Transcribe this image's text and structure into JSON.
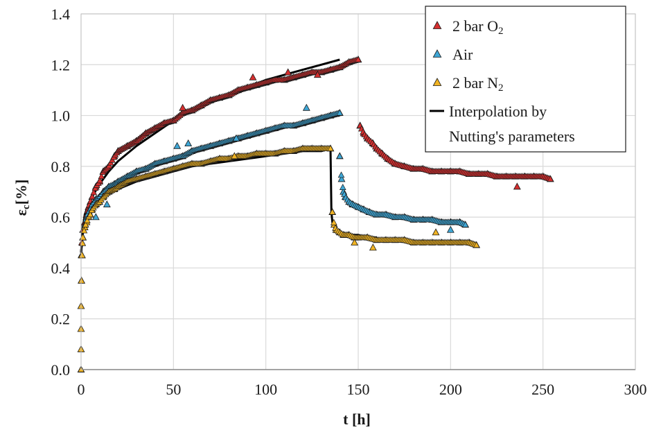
{
  "chart_data": {
    "type": "scatter",
    "xlabel": "t [h]",
    "ylabel": "ε",
    "ylabel_sub": "c",
    "ylabel_unit": "[%]",
    "xlim": [
      0,
      300
    ],
    "ylim": [
      0,
      1.4
    ],
    "xticks": [
      "0",
      "50",
      "100",
      "150",
      "200",
      "250",
      "300"
    ],
    "yticks": [
      "0.0",
      "0.2",
      "0.4",
      "0.6",
      "0.8",
      "1.0",
      "1.2",
      "1.4"
    ],
    "grid": true,
    "legend_position": "top-right",
    "legend": {
      "o2": {
        "main": "2 bar O",
        "sub": "2"
      },
      "air": {
        "main": "Air"
      },
      "n2": {
        "main": "2 bar N",
        "sub": "2"
      },
      "fit": {
        "line1": "Interpolation by",
        "line2": "Nutting's parameters"
      }
    },
    "colors": {
      "o2": "#d62f2f",
      "air": "#3fa7d6",
      "n2": "#f0b323",
      "fit": "#000000",
      "marker_edge": "#1a1a1a"
    },
    "series": [
      {
        "key": "o2",
        "segments": [
          {
            "phase": "loading",
            "x": [
              0.2,
              0.5,
              1,
              2,
              3,
              4,
              5,
              6,
              8,
              10,
              12,
              15,
              18,
              20,
              25,
              30,
              35,
              40,
              45,
              50,
              55,
              60,
              65,
              70,
              75,
              80,
              85,
              90,
              95,
              100,
              105,
              110,
              115,
              120,
              125,
              130,
              135,
              140,
              145,
              150
            ],
            "y": [
              0.45,
              0.5,
              0.55,
              0.58,
              0.61,
              0.64,
              0.66,
              0.68,
              0.72,
              0.74,
              0.78,
              0.8,
              0.84,
              0.86,
              0.88,
              0.9,
              0.93,
              0.95,
              0.97,
              0.98,
              1.01,
              1.02,
              1.04,
              1.06,
              1.07,
              1.08,
              1.1,
              1.11,
              1.12,
              1.13,
              1.14,
              1.14,
              1.15,
              1.16,
              1.17,
              1.17,
              1.18,
              1.19,
              1.21,
              1.22
            ]
          },
          {
            "phase": "recovery",
            "x": [
              151,
              153,
              155,
              158,
              160,
              163,
              166,
              170,
              175,
              180,
              185,
              190,
              195,
              200,
              205,
              210,
              215,
              220,
              225,
              230,
              235,
              240,
              245,
              250,
              254
            ],
            "y": [
              0.96,
              0.93,
              0.91,
              0.89,
              0.87,
              0.85,
              0.83,
              0.81,
              0.8,
              0.79,
              0.79,
              0.78,
              0.78,
              0.78,
              0.78,
              0.77,
              0.77,
              0.77,
              0.76,
              0.76,
              0.76,
              0.76,
              0.76,
              0.76,
              0.75
            ]
          }
        ],
        "outliers": {
          "x": [
            55,
            93,
            112,
            128,
            236
          ],
          "y": [
            1.03,
            1.15,
            1.17,
            1.16,
            0.72
          ]
        }
      },
      {
        "key": "air",
        "segments": [
          {
            "phase": "loading",
            "x": [
              0.2,
              0.5,
              1,
              2,
              3,
              4,
              5,
              6,
              8,
              10,
              12,
              15,
              18,
              20,
              25,
              30,
              35,
              40,
              45,
              50,
              55,
              60,
              65,
              70,
              75,
              80,
              85,
              90,
              95,
              100,
              105,
              110,
              115,
              120,
              125,
              130,
              135,
              140
            ],
            "y": [
              0.35,
              0.45,
              0.52,
              0.57,
              0.6,
              0.62,
              0.63,
              0.65,
              0.67,
              0.68,
              0.7,
              0.72,
              0.73,
              0.74,
              0.76,
              0.78,
              0.79,
              0.81,
              0.82,
              0.83,
              0.84,
              0.86,
              0.87,
              0.88,
              0.89,
              0.9,
              0.91,
              0.92,
              0.93,
              0.94,
              0.95,
              0.96,
              0.96,
              0.97,
              0.98,
              0.99,
              1.0,
              1.01
            ]
          },
          {
            "phase": "recovery",
            "x": [
              140,
              141,
              142,
              143,
              145,
              147,
              150,
              153,
              156,
              160,
              165,
              170,
              175,
              180,
              185,
              190,
              195,
              200,
              205,
              208
            ],
            "y": [
              0.84,
              0.75,
              0.7,
              0.68,
              0.66,
              0.65,
              0.64,
              0.63,
              0.62,
              0.61,
              0.61,
              0.6,
              0.6,
              0.59,
              0.59,
              0.59,
              0.58,
              0.58,
              0.58,
              0.57
            ]
          }
        ],
        "outliers": {
          "x": [
            8,
            14,
            52,
            58,
            84,
            122,
            200
          ],
          "y": [
            0.6,
            0.65,
            0.88,
            0.89,
            0.91,
            1.03,
            0.55
          ]
        }
      },
      {
        "key": "n2",
        "segments": [
          {
            "phase": "loading",
            "x": [
              0,
              0,
              0,
              0,
              0.2,
              0.5,
              1,
              2,
              3,
              4,
              5,
              6,
              8,
              10,
              12,
              15,
              18,
              20,
              25,
              30,
              35,
              40,
              45,
              50,
              55,
              60,
              65,
              70,
              75,
              80,
              85,
              90,
              95,
              100,
              105,
              110,
              115,
              120,
              125,
              130,
              135
            ],
            "y": [
              0.0,
              0.08,
              0.16,
              0.25,
              0.35,
              0.45,
              0.52,
              0.56,
              0.58,
              0.6,
              0.61,
              0.63,
              0.65,
              0.66,
              0.68,
              0.7,
              0.71,
              0.72,
              0.74,
              0.75,
              0.76,
              0.77,
              0.78,
              0.79,
              0.8,
              0.81,
              0.81,
              0.82,
              0.83,
              0.83,
              0.84,
              0.84,
              0.85,
              0.85,
              0.85,
              0.86,
              0.86,
              0.87,
              0.87,
              0.87,
              0.87
            ]
          },
          {
            "phase": "recovery",
            "x": [
              136,
              137,
              138,
              140,
              142,
              145,
              148,
              150,
              155,
              160,
              165,
              170,
              175,
              180,
              185,
              190,
              195,
              200,
              205,
              210,
              214
            ],
            "y": [
              0.62,
              0.57,
              0.55,
              0.54,
              0.53,
              0.53,
              0.52,
              0.52,
              0.52,
              0.51,
              0.51,
              0.51,
              0.51,
              0.5,
              0.5,
              0.5,
              0.5,
              0.5,
              0.5,
              0.5,
              0.49
            ]
          }
        ],
        "outliers": {
          "x": [
            83,
            148,
            158,
            192
          ],
          "y": [
            0.84,
            0.5,
            0.48,
            0.54
          ]
        }
      }
    ],
    "fit_lines": [
      {
        "x": [
          0,
          1,
          2,
          4,
          6,
          10,
          15,
          20,
          30,
          40,
          50,
          60,
          70,
          80,
          90,
          100,
          110,
          120,
          130,
          140
        ],
        "y": [
          0.46,
          0.56,
          0.61,
          0.65,
          0.68,
          0.73,
          0.78,
          0.82,
          0.88,
          0.93,
          0.98,
          1.02,
          1.05,
          1.08,
          1.11,
          1.14,
          1.16,
          1.18,
          1.2,
          1.22
        ]
      },
      {
        "x": [
          0,
          1,
          2,
          4,
          6,
          10,
          15,
          20,
          30,
          40,
          50,
          60,
          70,
          80,
          90,
          100,
          110,
          120,
          130,
          140
        ],
        "y": [
          0.46,
          0.55,
          0.59,
          0.63,
          0.65,
          0.68,
          0.71,
          0.73,
          0.77,
          0.8,
          0.83,
          0.86,
          0.88,
          0.9,
          0.92,
          0.94,
          0.96,
          0.97,
          0.99,
          1.0
        ]
      },
      {
        "x": [
          0,
          1,
          2,
          4,
          6,
          10,
          15,
          20,
          30,
          40,
          50,
          60,
          70,
          80,
          90,
          100,
          110,
          120,
          130,
          135
        ],
        "y": [
          0.46,
          0.54,
          0.58,
          0.61,
          0.63,
          0.66,
          0.69,
          0.71,
          0.74,
          0.76,
          0.78,
          0.8,
          0.81,
          0.82,
          0.83,
          0.84,
          0.85,
          0.86,
          0.86,
          0.87
        ]
      },
      {
        "x": [
          135,
          135.5,
          136,
          137,
          138,
          140,
          143,
          146,
          150,
          155,
          160
        ],
        "y": [
          0.87,
          0.62,
          0.58,
          0.56,
          0.55,
          0.54,
          0.53,
          0.53,
          0.53,
          0.52,
          0.52
        ]
      }
    ]
  }
}
